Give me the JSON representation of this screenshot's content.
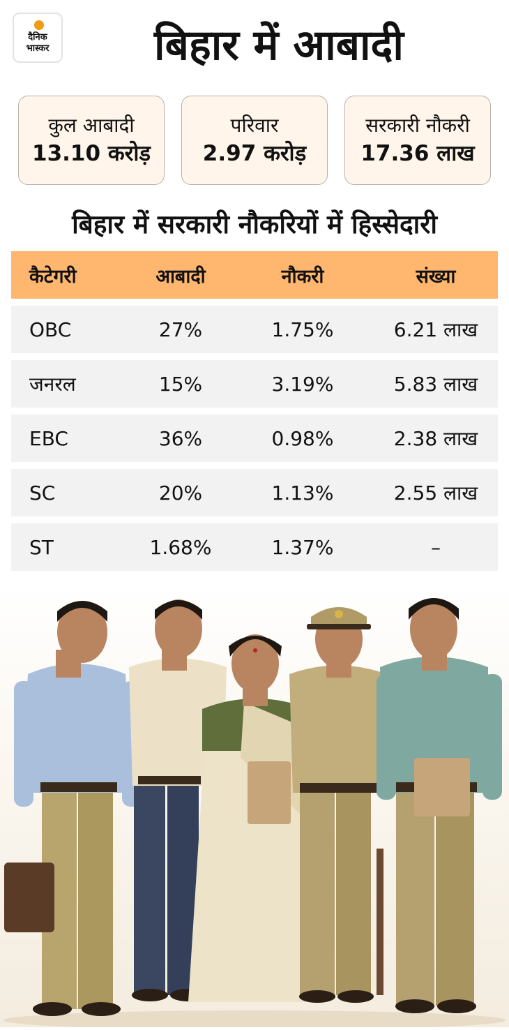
{
  "brand": {
    "logo_line1": "दैनिक",
    "logo_line2": "भास्कर"
  },
  "title": "बिहार में आबादी",
  "stats": [
    {
      "label": "कुल आबादी",
      "value": "13.10 करोड़"
    },
    {
      "label": "परिवार",
      "value": "2.97 करोड़"
    },
    {
      "label": "सरकारी नौकरी",
      "value": "17.36 लाख"
    }
  ],
  "table_title": "बिहार में सरकारी नौकरियों में हिस्सेदारी",
  "table": {
    "headers": [
      "कैटेगरी",
      "आबादी",
      "नौकरी",
      "संख्या"
    ],
    "rows": [
      [
        "OBC",
        "27%",
        "1.75%",
        "6.21 लाख"
      ],
      [
        "जनरल",
        "15%",
        "3.19%",
        "5.83 लाख"
      ],
      [
        "EBC",
        "36%",
        "0.98%",
        "2.38 लाख"
      ],
      [
        "SC",
        "20%",
        "1.13%",
        "2.55 लाख"
      ],
      [
        "ST",
        "1.68%",
        "1.37%",
        "–"
      ]
    ]
  },
  "colors": {
    "accent": "#f59a14",
    "header_bg": "#ffb66e",
    "card_bg": "#fff5ea",
    "row_bg": "#f2f2f2"
  }
}
